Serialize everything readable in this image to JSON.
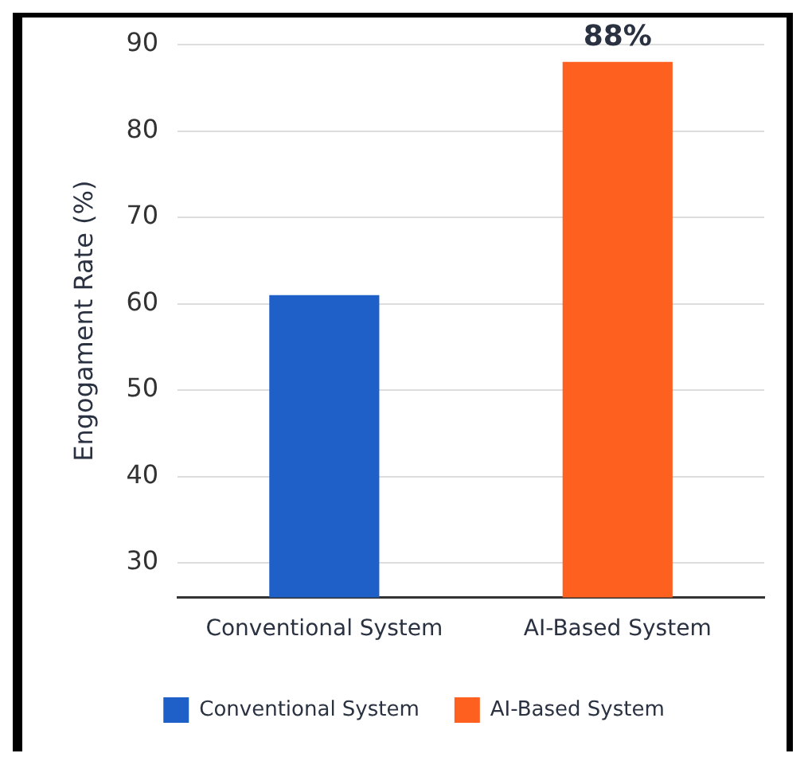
{
  "chart_data": {
    "type": "bar",
    "ylabel": "Engogament Rate (%)",
    "categories": [
      "Conventional System",
      "AI-Based System"
    ],
    "series": [
      {
        "name": "Conventional System",
        "color": "#1f5fc8",
        "values": [
          61,
          null
        ]
      },
      {
        "name": "AI-Based System",
        "color": "#fe6020",
        "values": [
          null,
          88
        ],
        "value_labels": [
          null,
          "88%"
        ]
      }
    ],
    "ylim": [
      26,
      90
    ],
    "yticks": [
      30,
      40,
      50,
      60,
      70,
      80,
      90
    ],
    "grid": "y",
    "legend": "bottom"
  }
}
